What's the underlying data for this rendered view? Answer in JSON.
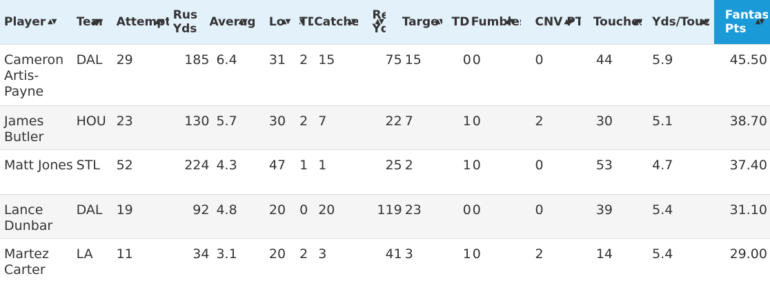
{
  "headers": [
    {
      "l1": "Player",
      "l2": ""
    },
    {
      "l1": "Team",
      "l2": ""
    },
    {
      "l1": "Attempts",
      "l2": ""
    },
    {
      "l1": "Rush",
      "l2": "Yds"
    },
    {
      "l1": "Average",
      "l2": ""
    },
    {
      "l1": "Long",
      "l2": ""
    },
    {
      "l1": "TD",
      "l2": ""
    },
    {
      "l1": "Catches",
      "l2": ""
    },
    {
      "l1": "Rec",
      "l2": "Yds"
    },
    {
      "l1": "Targets",
      "l2": ""
    },
    {
      "l1": "TD",
      "l2": ""
    },
    {
      "l1": "Fumbles",
      "l2": ""
    },
    {
      "l1": "CNV PTS",
      "l2": ""
    },
    {
      "l1": "Touches",
      "l2": ""
    },
    {
      "l1": "Yds/Touch",
      "l2": ""
    },
    {
      "l1": "Fantasy",
      "l2": "Pts"
    }
  ],
  "sort_icon": "sort-arrows-icon",
  "active_sort_color": "#1a9bd7",
  "rows": [
    [
      "Cameron Artis-Payne",
      "DAL",
      "29",
      "185",
      "6.4",
      "31",
      "2",
      "15",
      "75",
      "15",
      "0",
      "0",
      "0",
      "44",
      "5.9",
      "45.50"
    ],
    [
      "James Butler",
      "HOU",
      "23",
      "130",
      "5.7",
      "30",
      "2",
      "7",
      "22",
      "7",
      "1",
      "0",
      "2",
      "30",
      "5.1",
      "38.70"
    ],
    [
      "Matt Jones",
      "STL",
      "52",
      "224",
      "4.3",
      "47",
      "1",
      "1",
      "25",
      "2",
      "1",
      "0",
      "0",
      "53",
      "4.7",
      "37.40"
    ],
    [
      "Lance Dunbar",
      "DAL",
      "19",
      "92",
      "4.8",
      "20",
      "0",
      "20",
      "119",
      "23",
      "0",
      "0",
      "0",
      "39",
      "5.4",
      "31.10"
    ],
    [
      "Martez Carter",
      "LA",
      "11",
      "34",
      "3.1",
      "20",
      "2",
      "3",
      "41",
      "3",
      "1",
      "0",
      "2",
      "14",
      "5.4",
      "29.00"
    ]
  ]
}
